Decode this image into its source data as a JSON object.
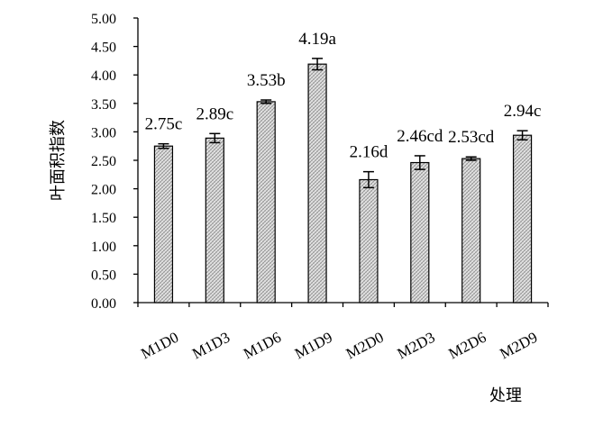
{
  "chart_data": {
    "type": "bar",
    "title": "",
    "xlabel": "处理",
    "ylabel": "叶面积指数",
    "ylim": [
      0,
      5
    ],
    "yticks": [
      "0.00",
      "0.50",
      "1.00",
      "1.50",
      "2.00",
      "2.50",
      "3.00",
      "3.50",
      "4.00",
      "4.50",
      "5.00"
    ],
    "categories": [
      "M1D0",
      "M1D3",
      "M1D6",
      "M1D9",
      "M2D0",
      "M2D3",
      "M2D6",
      "M2D9"
    ],
    "values": [
      2.75,
      2.89,
      3.53,
      4.19,
      2.16,
      2.46,
      2.53,
      2.94
    ],
    "errors": [
      0.04,
      0.08,
      0.03,
      0.1,
      0.14,
      0.12,
      0.03,
      0.08
    ],
    "labels": [
      "2.75c",
      "2.89c",
      "3.53b",
      "4.19a",
      "2.16d",
      "2.46cd",
      "2.53cd",
      "2.94c"
    ],
    "grid": false,
    "legend": "none",
    "bar_fill": "#d4d4d4"
  }
}
